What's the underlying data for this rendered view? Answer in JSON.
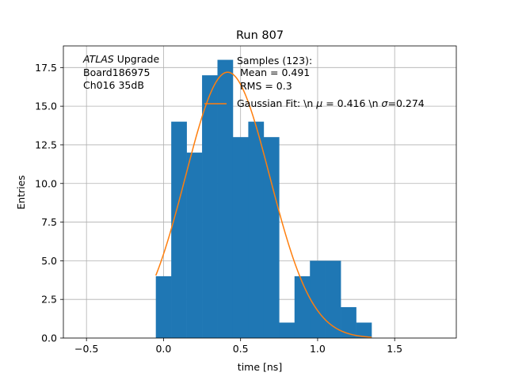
{
  "chart_data": {
    "type": "bar",
    "title": "Run 807",
    "xlabel": "time [ns]",
    "ylabel": "Entries",
    "xlim": [
      -0.65,
      1.9
    ],
    "ylim": [
      0,
      18.9
    ],
    "grid": true,
    "x_ticks": [
      {
        "value": -0.5,
        "label": "−0.5"
      },
      {
        "value": 0.0,
        "label": "0.0"
      },
      {
        "value": 0.5,
        "label": "0.5"
      },
      {
        "value": 1.0,
        "label": "1.0"
      },
      {
        "value": 1.5,
        "label": "1.5"
      }
    ],
    "y_ticks": [
      {
        "value": 0.0,
        "label": "0.0"
      },
      {
        "value": 2.5,
        "label": "2.5"
      },
      {
        "value": 5.0,
        "label": "5.0"
      },
      {
        "value": 7.5,
        "label": "7.5"
      },
      {
        "value": 10.0,
        "label": "10.0"
      },
      {
        "value": 12.5,
        "label": "12.5"
      },
      {
        "value": 15.0,
        "label": "15.0"
      },
      {
        "value": 17.5,
        "label": "17.5"
      }
    ],
    "histogram": {
      "bin_edges": [
        -0.05,
        0.05,
        0.15,
        0.25,
        0.35,
        0.45,
        0.55,
        0.65,
        0.75,
        0.85,
        0.95,
        1.05,
        1.15,
        1.25,
        1.35
      ],
      "counts": [
        4,
        14,
        12,
        17,
        18,
        13,
        14,
        13,
        1,
        4,
        5,
        5,
        2,
        1
      ],
      "color": "#1f77b4"
    },
    "fit": {
      "function": "gaussian",
      "mu": 0.416,
      "sigma": 0.274,
      "amplitude": 17.2,
      "x_range": [
        -0.05,
        1.35
      ],
      "color": "#ff7f0e"
    },
    "annotation_lines": [
      {
        "italic": "ATLAS",
        "rest": " Upgrade"
      },
      {
        "italic": "",
        "rest": " Board186975"
      },
      {
        "italic": "",
        "rest": " Ch016 35dB"
      }
    ],
    "legend": {
      "placement": "top-right",
      "lines": [
        "Samples (123):",
        " Mean = 0.491",
        " RMS = 0.3"
      ],
      "fit_label": {
        "pre": "Gaussian Fit: \\n ",
        "mu_sym": "μ",
        "mid": " = 0.416 \\n ",
        "sigma_sym": "σ",
        "post": "=0.274"
      }
    }
  }
}
